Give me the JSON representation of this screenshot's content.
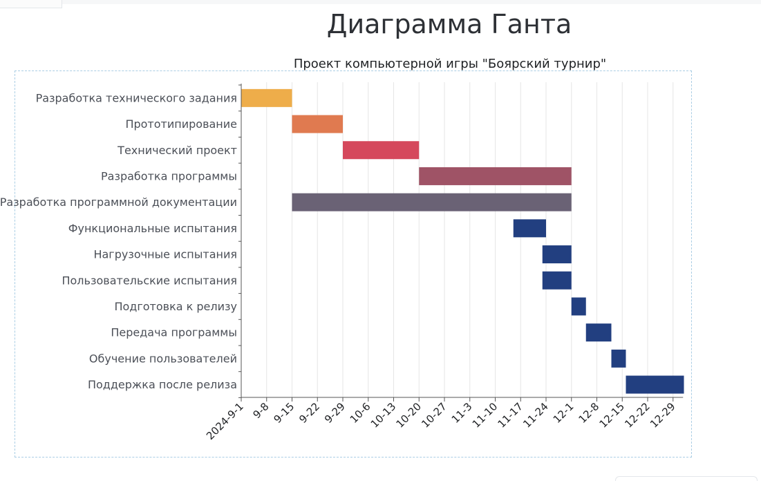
{
  "page": {
    "title": "Диаграмма Ганта"
  },
  "chart_data": {
    "type": "bar",
    "orientation": "horizontal",
    "subtitle": "Проект компьютерной игры \"Боярский турнир\"",
    "xlabel": "",
    "ylabel": "",
    "x_range": [
      "2024-09-01",
      "2024-12-31"
    ],
    "x_ticks": [
      "2024-9-1",
      "9-8",
      "9-15",
      "9-22",
      "9-29",
      "10-6",
      "10-13",
      "10-20",
      "10-27",
      "11-3",
      "11-10",
      "11-17",
      "11-24",
      "12-1",
      "12-8",
      "12-15",
      "12-22",
      "12-29"
    ],
    "grid": true,
    "tasks": [
      {
        "name": "Разработка технического задания",
        "start": "2024-09-01",
        "end": "2024-09-14",
        "color": "#eead4a"
      },
      {
        "name": "Прототипирование",
        "start": "2024-09-15",
        "end": "2024-09-28",
        "color": "#e07a50"
      },
      {
        "name": "Технический проект",
        "start": "2024-09-29",
        "end": "2024-10-19",
        "color": "#d5485c"
      },
      {
        "name": "Разработка программы",
        "start": "2024-10-20",
        "end": "2024-11-30",
        "color": "#9f5366"
      },
      {
        "name": "Разработка программной документации",
        "start": "2024-09-15",
        "end": "2024-11-30",
        "color": "#6a6275"
      },
      {
        "name": "Функциональные испытания",
        "start": "2024-11-15",
        "end": "2024-11-23",
        "color": "#223f80"
      },
      {
        "name": "Нагрузочные испытания",
        "start": "2024-11-23",
        "end": "2024-11-30",
        "color": "#223f80"
      },
      {
        "name": "Пользовательские испытания",
        "start": "2024-11-23",
        "end": "2024-11-30",
        "color": "#223f80"
      },
      {
        "name": "Подготовка к релизу",
        "start": "2024-12-01",
        "end": "2024-12-04",
        "color": "#223f80"
      },
      {
        "name": "Передача программы",
        "start": "2024-12-05",
        "end": "2024-12-11",
        "color": "#223f80"
      },
      {
        "name": "Обучение пользователей",
        "start": "2024-12-12",
        "end": "2024-12-15",
        "color": "#223f80"
      },
      {
        "name": "Поддержка после релиза",
        "start": "2024-12-16",
        "end": "2024-12-31",
        "color": "#223f80"
      }
    ]
  }
}
